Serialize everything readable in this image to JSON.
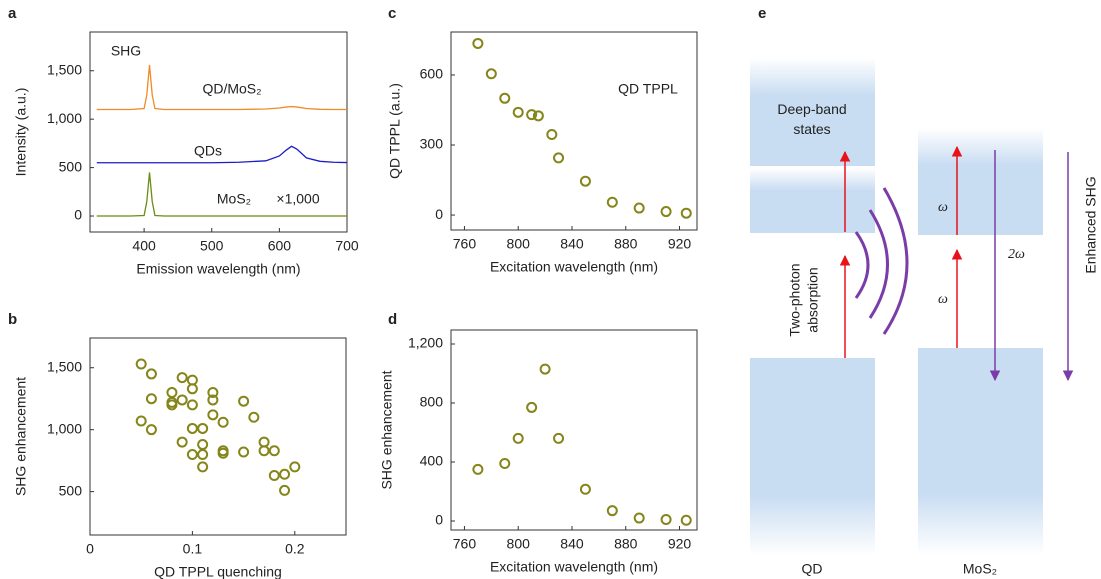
{
  "chart_data": [
    {
      "type": "line",
      "label": "a",
      "xlabel": "Emission wavelength (nm)",
      "ylabel": "Intensity (a.u.)",
      "x": [
        330,
        360,
        380,
        400,
        404,
        408,
        412,
        416,
        430,
        460,
        500,
        540,
        580,
        600,
        610,
        618,
        626,
        640,
        660,
        680,
        700
      ],
      "series": [
        {
          "name": "QD/MoS₂",
          "color": "#f08a24",
          "values": [
            1100,
            1100,
            1100,
            1110,
            1250,
            1560,
            1250,
            1110,
            1100,
            1100,
            1100,
            1100,
            1105,
            1115,
            1125,
            1130,
            1125,
            1110,
            1102,
            1100,
            1100
          ]
        },
        {
          "name": "QDs",
          "color": "#1c1cc8",
          "values": [
            550,
            550,
            550,
            550,
            550,
            550,
            550,
            550,
            550,
            550,
            550,
            555,
            570,
            620,
            680,
            720,
            690,
            600,
            565,
            555,
            552
          ]
        },
        {
          "name": "MoS₂",
          "color": "#6b8c12",
          "values": [
            0,
            0,
            0,
            5,
            150,
            450,
            150,
            5,
            0,
            0,
            0,
            0,
            0,
            0,
            0,
            0,
            0,
            0,
            0,
            0,
            0
          ]
        }
      ],
      "annotations": [
        "SHG",
        "QD TPPL",
        "×1,000"
      ],
      "xlim": [
        320,
        700
      ],
      "ylim": [
        -165,
        1900
      ],
      "xticks": [
        400,
        500,
        600,
        700
      ],
      "yticks": [
        0,
        500,
        {
          "value": 1000,
          "label": "1,000"
        },
        {
          "value": 1500,
          "label": "1,500"
        }
      ]
    },
    {
      "type": "scatter",
      "label": "b",
      "xlabel": "QD TPPL quenching",
      "ylabel": "SHG enhancement",
      "color": "#85851a",
      "x": [
        0.05,
        0.06,
        0.06,
        0.05,
        0.06,
        0.08,
        0.08,
        0.08,
        0.09,
        0.09,
        0.09,
        0.1,
        0.1,
        0.1,
        0.1,
        0.1,
        0.11,
        0.11,
        0.11,
        0.11,
        0.12,
        0.12,
        0.12,
        0.13,
        0.13,
        0.13,
        0.15,
        0.15,
        0.16,
        0.17,
        0.17,
        0.18,
        0.18,
        0.19,
        0.19,
        0.2
      ],
      "values": [
        1530,
        1450,
        1250,
        1070,
        1000,
        1300,
        1220,
        1200,
        1420,
        1240,
        900,
        1400,
        1330,
        1200,
        1010,
        800,
        1010,
        880,
        800,
        700,
        1300,
        1240,
        1120,
        1060,
        830,
        810,
        1230,
        820,
        1100,
        900,
        830,
        830,
        630,
        640,
        510,
        700
      ],
      "xlim": [
        0,
        0.25
      ],
      "ylim": [
        150,
        1740
      ],
      "xticks": [
        0,
        0.1,
        0.2
      ],
      "yticks": [
        500,
        {
          "value": 1000,
          "label": "1,000"
        },
        {
          "value": 1500,
          "label": "1,500"
        }
      ]
    },
    {
      "type": "scatter",
      "label": "c",
      "xlabel": "Excitation wavelength (nm)",
      "ylabel": "QD TPPL (a.u.)",
      "color": "#85851a",
      "x": [
        770,
        780,
        790,
        800,
        810,
        815,
        825,
        830,
        850,
        870,
        890,
        910,
        925
      ],
      "values": [
        735,
        605,
        500,
        440,
        430,
        425,
        345,
        245,
        145,
        55,
        30,
        15,
        8
      ],
      "xlim": [
        750,
        933
      ],
      "ylim": [
        -64,
        784
      ],
      "xticks": [
        760,
        800,
        840,
        880,
        920
      ],
      "yticks": [
        0,
        300,
        600
      ]
    },
    {
      "type": "scatter",
      "label": "d",
      "xlabel": "Excitation wavelength (nm)",
      "ylabel": "SHG enhancement",
      "color": "#85851a",
      "x": [
        770,
        790,
        800,
        810,
        820,
        830,
        850,
        870,
        890,
        910,
        925
      ],
      "values": [
        350,
        390,
        560,
        770,
        1030,
        560,
        215,
        70,
        20,
        10,
        5
      ],
      "xlim": [
        750,
        933
      ],
      "ylim": [
        -61,
        1295
      ],
      "xticks": [
        760,
        800,
        840,
        880,
        920
      ],
      "yticks": [
        0,
        400,
        800,
        {
          "value": 1200,
          "label": "1,200"
        }
      ]
    }
  ],
  "diagram": {
    "label": "e",
    "deep_band": "Deep-band states",
    "absorption": [
      "Two-photon",
      "absorption"
    ],
    "omega_top": "ω",
    "omega_bottom": "ω",
    "two_omega": "2ω",
    "enhanced": "Enhanced SHG",
    "qd": "QD",
    "mos2": "MoS₂"
  }
}
